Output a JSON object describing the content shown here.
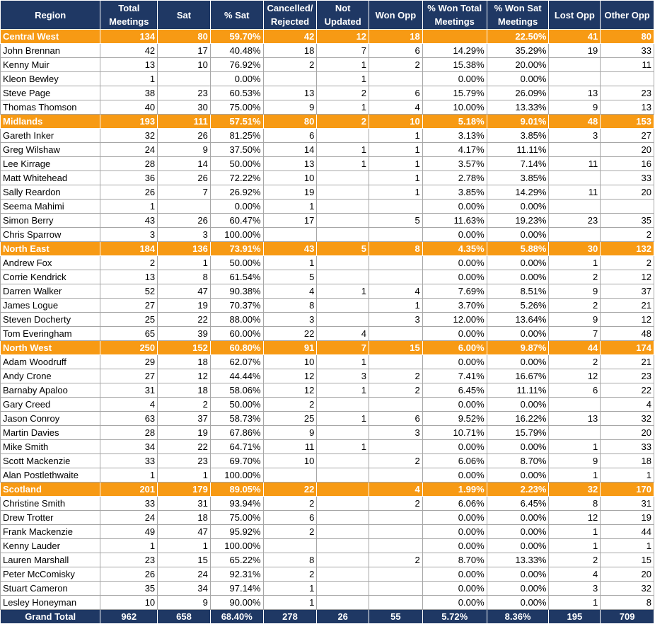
{
  "headers": [
    "Region",
    "Total Meetings",
    "Sat",
    "% Sat",
    "Cancelled/ Rejected",
    "Not Updated",
    "Won Opp",
    "% Won Total Meetings",
    "% Won Sat Meetings",
    "Lost Opp",
    "Other Opp"
  ],
  "rows": [
    {
      "type": "region",
      "cells": [
        "Central West",
        "134",
        "80",
        "59.70%",
        "42",
        "12",
        "18",
        "",
        "22.50%",
        "41",
        "80"
      ]
    },
    {
      "type": "person",
      "cells": [
        "John Brennan",
        "42",
        "17",
        "40.48%",
        "18",
        "7",
        "6",
        "14.29%",
        "35.29%",
        "19",
        "33"
      ]
    },
    {
      "type": "person",
      "cells": [
        "Kenny Muir",
        "13",
        "10",
        "76.92%",
        "2",
        "1",
        "2",
        "15.38%",
        "20.00%",
        "",
        "11"
      ]
    },
    {
      "type": "person",
      "cells": [
        "Kleon Bewley",
        "1",
        "",
        "0.00%",
        "",
        "1",
        "",
        "0.00%",
        "0.00%",
        "",
        ""
      ]
    },
    {
      "type": "person",
      "cells": [
        "Steve Page",
        "38",
        "23",
        "60.53%",
        "13",
        "2",
        "6",
        "15.79%",
        "26.09%",
        "13",
        "23"
      ]
    },
    {
      "type": "person",
      "cells": [
        "Thomas Thomson",
        "40",
        "30",
        "75.00%",
        "9",
        "1",
        "4",
        "10.00%",
        "13.33%",
        "9",
        "13"
      ]
    },
    {
      "type": "region",
      "cells": [
        "Midlands",
        "193",
        "111",
        "57.51%",
        "80",
        "2",
        "10",
        "5.18%",
        "9.01%",
        "48",
        "153"
      ]
    },
    {
      "type": "person",
      "cells": [
        "Gareth Inker",
        "32",
        "26",
        "81.25%",
        "6",
        "",
        "1",
        "3.13%",
        "3.85%",
        "3",
        "27"
      ]
    },
    {
      "type": "person",
      "cells": [
        "Greg Wilshaw",
        "24",
        "9",
        "37.50%",
        "14",
        "1",
        "1",
        "4.17%",
        "11.11%",
        "",
        "20"
      ]
    },
    {
      "type": "person",
      "cells": [
        "Lee Kirrage",
        "28",
        "14",
        "50.00%",
        "13",
        "1",
        "1",
        "3.57%",
        "7.14%",
        "11",
        "16"
      ]
    },
    {
      "type": "person",
      "cells": [
        "Matt Whitehead",
        "36",
        "26",
        "72.22%",
        "10",
        "",
        "1",
        "2.78%",
        "3.85%",
        "",
        "33"
      ]
    },
    {
      "type": "person",
      "cells": [
        "Sally Reardon",
        "26",
        "7",
        "26.92%",
        "19",
        "",
        "1",
        "3.85%",
        "14.29%",
        "11",
        "20"
      ]
    },
    {
      "type": "person",
      "cells": [
        "Seema Mahimi",
        "1",
        "",
        "0.00%",
        "1",
        "",
        "",
        "0.00%",
        "0.00%",
        "",
        ""
      ]
    },
    {
      "type": "person",
      "cells": [
        "Simon Berry",
        "43",
        "26",
        "60.47%",
        "17",
        "",
        "5",
        "11.63%",
        "19.23%",
        "23",
        "35"
      ]
    },
    {
      "type": "person",
      "cells": [
        "Chris Sparrow",
        "3",
        "3",
        "100.00%",
        "",
        "",
        "",
        "0.00%",
        "0.00%",
        "",
        "2"
      ]
    },
    {
      "type": "region",
      "cells": [
        "North East",
        "184",
        "136",
        "73.91%",
        "43",
        "5",
        "8",
        "4.35%",
        "5.88%",
        "30",
        "132"
      ]
    },
    {
      "type": "person",
      "cells": [
        "Andrew Fox",
        "2",
        "1",
        "50.00%",
        "1",
        "",
        "",
        "0.00%",
        "0.00%",
        "1",
        "2"
      ]
    },
    {
      "type": "person",
      "cells": [
        "Corrie Kendrick",
        "13",
        "8",
        "61.54%",
        "5",
        "",
        "",
        "0.00%",
        "0.00%",
        "2",
        "12"
      ]
    },
    {
      "type": "person",
      "cells": [
        "Darren Walker",
        "52",
        "47",
        "90.38%",
        "4",
        "1",
        "4",
        "7.69%",
        "8.51%",
        "9",
        "37"
      ]
    },
    {
      "type": "person",
      "cells": [
        "James Logue",
        "27",
        "19",
        "70.37%",
        "8",
        "",
        "1",
        "3.70%",
        "5.26%",
        "2",
        "21"
      ]
    },
    {
      "type": "person",
      "cells": [
        "Steven Docherty",
        "25",
        "22",
        "88.00%",
        "3",
        "",
        "3",
        "12.00%",
        "13.64%",
        "9",
        "12"
      ]
    },
    {
      "type": "person",
      "cells": [
        "Tom Everingham",
        "65",
        "39",
        "60.00%",
        "22",
        "4",
        "",
        "0.00%",
        "0.00%",
        "7",
        "48"
      ]
    },
    {
      "type": "region",
      "cells": [
        "North West",
        "250",
        "152",
        "60.80%",
        "91",
        "7",
        "15",
        "6.00%",
        "9.87%",
        "44",
        "174"
      ]
    },
    {
      "type": "person",
      "cells": [
        "Adam Woodruff",
        "29",
        "18",
        "62.07%",
        "10",
        "1",
        "",
        "0.00%",
        "0.00%",
        "2",
        "21"
      ]
    },
    {
      "type": "person",
      "cells": [
        "Andy Crone",
        "27",
        "12",
        "44.44%",
        "12",
        "3",
        "2",
        "7.41%",
        "16.67%",
        "12",
        "23"
      ]
    },
    {
      "type": "person",
      "cells": [
        "Barnaby Apaloo",
        "31",
        "18",
        "58.06%",
        "12",
        "1",
        "2",
        "6.45%",
        "11.11%",
        "6",
        "22"
      ]
    },
    {
      "type": "person",
      "cells": [
        "Gary Creed",
        "4",
        "2",
        "50.00%",
        "2",
        "",
        "",
        "0.00%",
        "0.00%",
        "",
        "4"
      ]
    },
    {
      "type": "person",
      "cells": [
        "Jason Conroy",
        "63",
        "37",
        "58.73%",
        "25",
        "1",
        "6",
        "9.52%",
        "16.22%",
        "13",
        "32"
      ]
    },
    {
      "type": "person",
      "cells": [
        "Martin Davies",
        "28",
        "19",
        "67.86%",
        "9",
        "",
        "3",
        "10.71%",
        "15.79%",
        "",
        "20"
      ]
    },
    {
      "type": "person",
      "cells": [
        "Mike Smith",
        "34",
        "22",
        "64.71%",
        "11",
        "1",
        "",
        "0.00%",
        "0.00%",
        "1",
        "33"
      ]
    },
    {
      "type": "person",
      "cells": [
        "Scott Mackenzie",
        "33",
        "23",
        "69.70%",
        "10",
        "",
        "2",
        "6.06%",
        "8.70%",
        "9",
        "18"
      ]
    },
    {
      "type": "person",
      "cells": [
        "Alan Postlethwaite",
        "1",
        "1",
        "100.00%",
        "",
        "",
        "",
        "0.00%",
        "0.00%",
        "1",
        "1"
      ]
    },
    {
      "type": "region",
      "cells": [
        "Scotland",
        "201",
        "179",
        "89.05%",
        "22",
        "",
        "4",
        "1.99%",
        "2.23%",
        "32",
        "170"
      ]
    },
    {
      "type": "person",
      "cells": [
        "Christine Smith",
        "33",
        "31",
        "93.94%",
        "2",
        "",
        "2",
        "6.06%",
        "6.45%",
        "8",
        "31"
      ]
    },
    {
      "type": "person",
      "cells": [
        "Drew Trotter",
        "24",
        "18",
        "75.00%",
        "6",
        "",
        "",
        "0.00%",
        "0.00%",
        "12",
        "19"
      ]
    },
    {
      "type": "person",
      "cells": [
        "Frank Mackenzie",
        "49",
        "47",
        "95.92%",
        "2",
        "",
        "",
        "0.00%",
        "0.00%",
        "1",
        "44"
      ]
    },
    {
      "type": "person",
      "cells": [
        "Kenny Lauder",
        "1",
        "1",
        "100.00%",
        "",
        "",
        "",
        "0.00%",
        "0.00%",
        "1",
        "1"
      ]
    },
    {
      "type": "person",
      "cells": [
        "Lauren Marshall",
        "23",
        "15",
        "65.22%",
        "8",
        "",
        "2",
        "8.70%",
        "13.33%",
        "2",
        "15"
      ]
    },
    {
      "type": "person",
      "cells": [
        "Peter McComisky",
        "26",
        "24",
        "92.31%",
        "2",
        "",
        "",
        "0.00%",
        "0.00%",
        "4",
        "20"
      ]
    },
    {
      "type": "person",
      "cells": [
        "Stuart Cameron",
        "35",
        "34",
        "97.14%",
        "1",
        "",
        "",
        "0.00%",
        "0.00%",
        "3",
        "32"
      ]
    },
    {
      "type": "person",
      "cells": [
        "Lesley Honeyman",
        "10",
        "9",
        "90.00%",
        "1",
        "",
        "",
        "0.00%",
        "0.00%",
        "1",
        "8"
      ]
    }
  ],
  "total": [
    "Grand Total",
    "962",
    "658",
    "68.40%",
    "278",
    "26",
    "55",
    "5.72%",
    "8.36%",
    "195",
    "709"
  ],
  "colors": {
    "header_bg": "#1f3864",
    "region_bg": "#f79a14",
    "border": "#a6a6a6"
  }
}
